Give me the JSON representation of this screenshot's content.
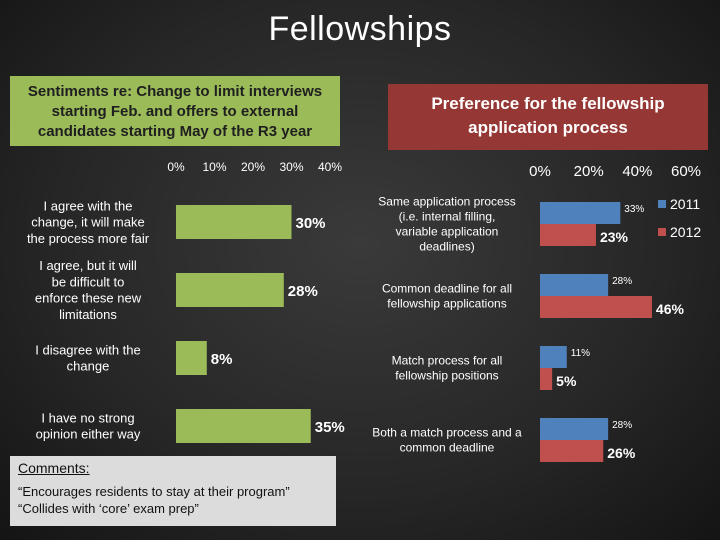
{
  "slide": {
    "title": "Fellowships",
    "left_box": "Sentiments re: Change to limit interviews starting Feb. and offers to external candidates starting May of the R3 year",
    "right_box": "Preference for the fellowship application process",
    "comments_heading": "Comments:",
    "comments": [
      "“Encourages residents to stay at their program”",
      "“Collides with ‘core’ exam prep”"
    ]
  },
  "colors": {
    "green": "#9bbb59",
    "blue": "#4f81bd",
    "red": "#c0504d",
    "dark_red_box": "#953735"
  },
  "chart_data": [
    {
      "type": "bar",
      "orientation": "horizontal",
      "categories": [
        "I agree with the change, it will make the process more fair",
        "I agree, but it will be difficult to enforce these new limitations",
        "I disagree with the change",
        "I have no strong opinion either way"
      ],
      "values": [
        30,
        28,
        8,
        35
      ],
      "data_labels": [
        "30%",
        "28%",
        "8%",
        "35%"
      ],
      "tick_labels": [
        "0%",
        "10%",
        "20%",
        "30%",
        "40%"
      ],
      "xlim": [
        0,
        40
      ],
      "grid": false,
      "legend": "none"
    },
    {
      "type": "bar",
      "orientation": "horizontal",
      "categories": [
        "Same application process (i.e. internal filling, variable application deadlines)",
        "Common deadline for all fellowship applications",
        "Match process for all fellowship positions",
        "Both a match process and a common deadline"
      ],
      "series": [
        {
          "name": "2011",
          "values": [
            33,
            28,
            11,
            28
          ],
          "labels": [
            "33%",
            "28%",
            "11%",
            "28%"
          ]
        },
        {
          "name": "2012",
          "values": [
            23,
            46,
            5,
            26
          ],
          "labels": [
            "23%",
            "46%",
            "5%",
            "26%"
          ]
        }
      ],
      "tick_labels": [
        "0%",
        "20%",
        "40%",
        "60%"
      ],
      "xlim": [
        0,
        60
      ],
      "grid": false,
      "legend": "top-right"
    }
  ]
}
